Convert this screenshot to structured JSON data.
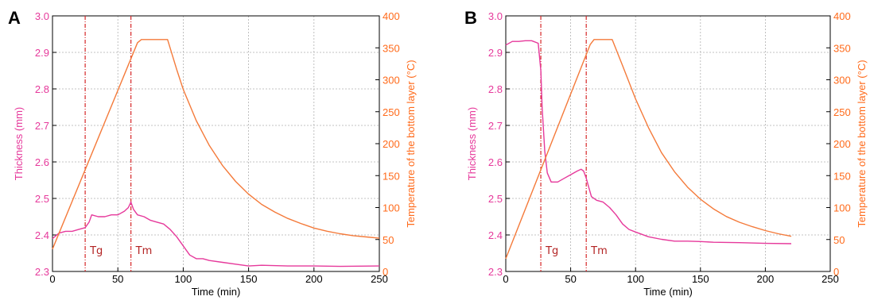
{
  "colors": {
    "thickness": "#e6399b",
    "temperature": "#f47a3a",
    "marker": "#d62728",
    "grid": "#b0b0b0"
  },
  "chart_data": [
    {
      "panel_label": "A",
      "type": "line",
      "xlabel": "Time (min)",
      "ylabel_left": "Thickness (mm)",
      "ylabel_right": "Temperature of the bottom layer (°C)",
      "xlim": [
        0,
        250
      ],
      "ylim_left": [
        2.3,
        3.0
      ],
      "ylim_right": [
        0,
        400
      ],
      "x_ticks": [
        "0",
        "50",
        "100",
        "150",
        "200",
        "250"
      ],
      "y_left_ticks": [
        "2.3",
        "2.4",
        "2.5",
        "2.6",
        "2.7",
        "2.8",
        "2.9",
        "3.0"
      ],
      "y_right_ticks": [
        "0",
        "50",
        "100",
        "150",
        "200",
        "250",
        "300",
        "350",
        "400"
      ],
      "grid": true,
      "annotations": [
        {
          "text": "Tg",
          "x": 25
        },
        {
          "text": "Tm",
          "x": 60
        }
      ],
      "series": [
        {
          "axis": "left",
          "x": [
            0,
            5,
            10,
            15,
            20,
            25,
            28,
            30,
            35,
            40,
            45,
            50,
            55,
            58,
            60,
            62,
            65,
            70,
            75,
            80,
            85,
            90,
            95,
            100,
            105,
            110,
            115,
            120,
            130,
            140,
            150,
            160,
            180,
            200,
            220,
            250
          ],
          "values": [
            2.39,
            2.405,
            2.41,
            2.41,
            2.415,
            2.42,
            2.435,
            2.455,
            2.45,
            2.45,
            2.455,
            2.455,
            2.465,
            2.475,
            2.49,
            2.47,
            2.455,
            2.45,
            2.44,
            2.435,
            2.43,
            2.415,
            2.395,
            2.37,
            2.345,
            2.335,
            2.335,
            2.33,
            2.325,
            2.32,
            2.315,
            2.317,
            2.315,
            2.315,
            2.314,
            2.315
          ]
        },
        {
          "axis": "right",
          "x": [
            0,
            65,
            68,
            88,
            95,
            100,
            110,
            120,
            130,
            140,
            150,
            160,
            170,
            180,
            190,
            200,
            210,
            220,
            230,
            240,
            250
          ],
          "values": [
            35,
            358,
            363,
            363,
            316,
            285,
            236,
            197,
            166,
            141,
            121,
            105,
            93,
            83,
            75,
            68,
            63,
            59,
            56,
            54,
            52
          ]
        }
      ]
    },
    {
      "panel_label": "B",
      "type": "line",
      "xlabel": "Time (min)",
      "ylabel_left": "Thickness (mm)",
      "ylabel_right": "Temperature of the bottom layer (°C)",
      "xlim": [
        0,
        250
      ],
      "ylim_left": [
        2.3,
        3.0
      ],
      "ylim_right": [
        0,
        400
      ],
      "x_ticks": [
        "0",
        "50",
        "100",
        "150",
        "200",
        "250"
      ],
      "y_left_ticks": [
        "2.3",
        "2.4",
        "2.5",
        "2.6",
        "2.7",
        "2.8",
        "2.9",
        "3.0"
      ],
      "y_right_ticks": [
        "0",
        "50",
        "100",
        "150",
        "200",
        "250",
        "300",
        "350",
        "400"
      ],
      "grid": true,
      "annotations": [
        {
          "text": "Tg",
          "x": 27
        },
        {
          "text": "Tm",
          "x": 62
        }
      ],
      "series": [
        {
          "axis": "left",
          "x": [
            0,
            5,
            10,
            15,
            20,
            25,
            27,
            28,
            30,
            32,
            35,
            40,
            45,
            50,
            55,
            58,
            60,
            62,
            64,
            66,
            70,
            75,
            80,
            85,
            90,
            95,
            100,
            110,
            120,
            130,
            140,
            150,
            160,
            180,
            200,
            220
          ],
          "values": [
            2.92,
            2.93,
            2.93,
            2.932,
            2.932,
            2.925,
            2.85,
            2.75,
            2.63,
            2.57,
            2.545,
            2.545,
            2.555,
            2.565,
            2.575,
            2.58,
            2.575,
            2.555,
            2.53,
            2.505,
            2.495,
            2.49,
            2.475,
            2.455,
            2.43,
            2.415,
            2.408,
            2.395,
            2.388,
            2.383,
            2.383,
            2.382,
            2.38,
            2.379,
            2.377,
            2.376
          ]
        },
        {
          "axis": "right",
          "x": [
            0,
            65,
            68,
            82,
            90,
            100,
            110,
            120,
            130,
            140,
            150,
            160,
            170,
            180,
            190,
            200,
            210,
            220
          ],
          "values": [
            20,
            355,
            363,
            363,
            322,
            270,
            225,
            186,
            156,
            132,
            113,
            98,
            86,
            77,
            70,
            64,
            59,
            55
          ]
        }
      ]
    }
  ]
}
